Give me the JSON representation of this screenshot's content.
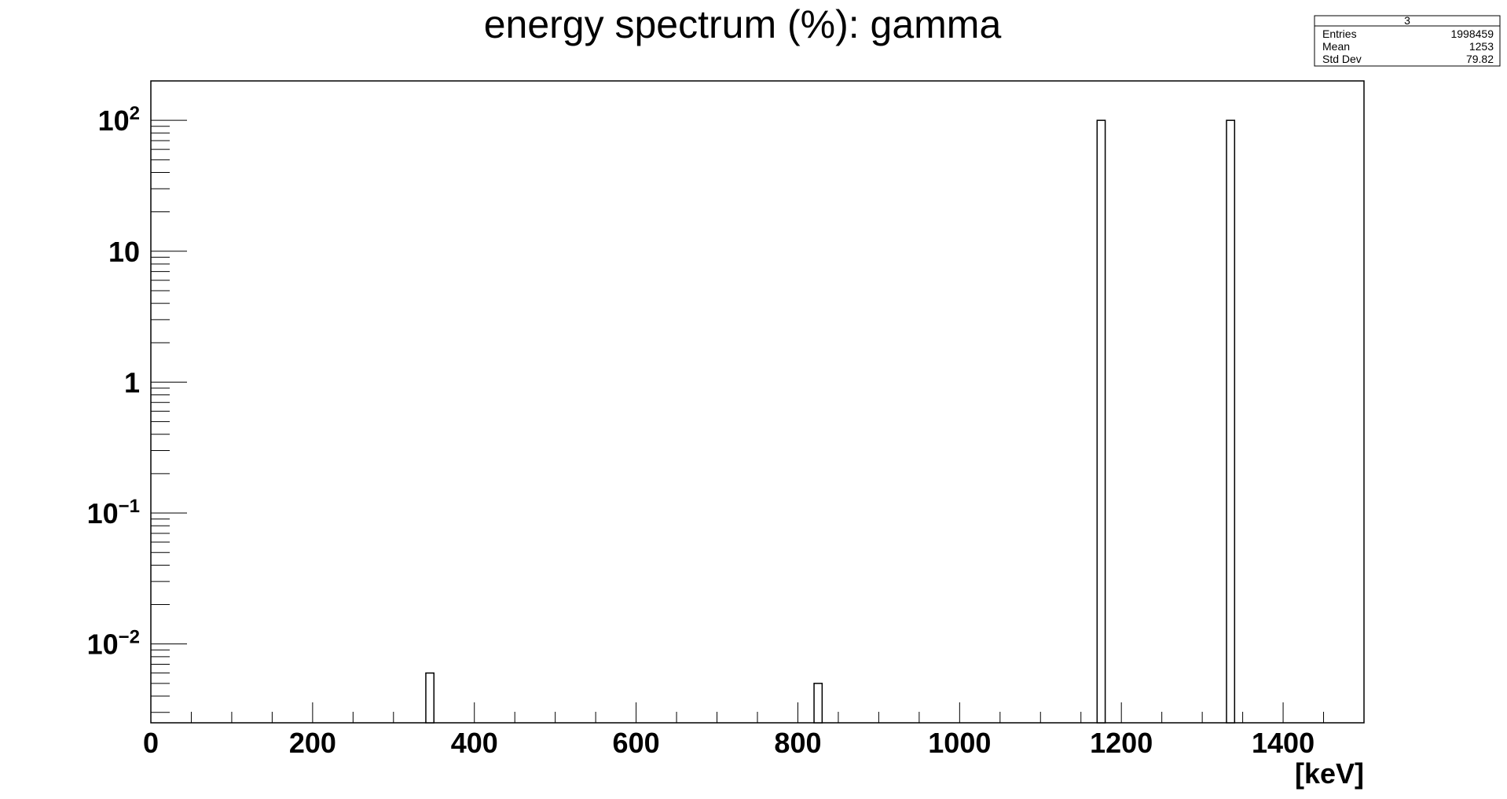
{
  "chart_data": {
    "type": "bar",
    "title": "energy spectrum (%): gamma",
    "xlabel": "[keV]",
    "ylabel": "",
    "xlim": [
      0,
      1500
    ],
    "ylim": [
      0.0025,
      200
    ],
    "y_scale": "log",
    "grid": false,
    "legend": "none",
    "x_ticks": [
      "0",
      "200",
      "400",
      "600",
      "800",
      "1000",
      "1200",
      "1400"
    ],
    "x_tick_values": [
      0,
      200,
      400,
      600,
      800,
      1000,
      1200,
      1400
    ],
    "y_ticks": [
      {
        "base": "10",
        "exp": "−2",
        "value": 0.01
      },
      {
        "base": "10",
        "exp": "−1",
        "value": 0.1
      },
      {
        "base": "1",
        "exp": "",
        "value": 1
      },
      {
        "base": "10",
        "exp": "",
        "value": 10
      },
      {
        "base": "10",
        "exp": "2",
        "value": 100
      }
    ],
    "bins": [
      {
        "x_low": 340,
        "x_high": 350,
        "value": 0.006
      },
      {
        "x_low": 820,
        "x_high": 830,
        "value": 0.005
      },
      {
        "x_low": 1170,
        "x_high": 1180,
        "value": 100
      },
      {
        "x_low": 1330,
        "x_high": 1340,
        "value": 100
      }
    ]
  },
  "stats_box": {
    "name": "3",
    "rows": [
      {
        "label": "Entries",
        "value": "1998459"
      },
      {
        "label": "Mean",
        "value": "1253"
      },
      {
        "label": "Std Dev",
        "value": "79.82"
      }
    ]
  },
  "colors": {
    "frame": "#000000",
    "bar_fill": "#ffffff",
    "bar_stroke": "#000000",
    "background": "#ffffff"
  }
}
